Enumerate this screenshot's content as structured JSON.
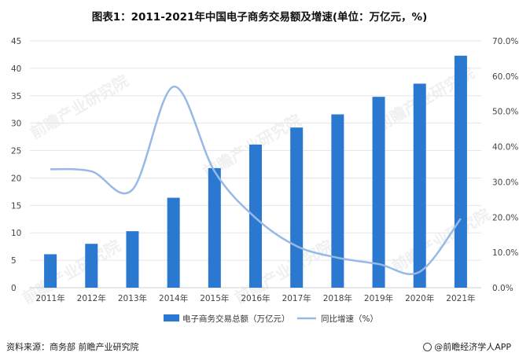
{
  "title": "图表1：2011-2021年中国电子商务交易额及增速(单位：万亿元，%)",
  "source": "资料来源：商务部 前瞻产业研究院",
  "brand": "@前瞻经济学人APP",
  "watermark": "前瞻产业研究院",
  "colors": {
    "bar": "#2b78d0",
    "line": "#97b9e6",
    "grid": "#e6e6e6",
    "axis": "#d0d0d0",
    "text": "#444444"
  },
  "chart_data": {
    "type": "bar",
    "categories": [
      "2011年",
      "2012年",
      "2013年",
      "2014年",
      "2015年",
      "2016年",
      "2017年",
      "2018年",
      "2019年",
      "2020年",
      "2021年"
    ],
    "series": [
      {
        "name": "电子商务交易总额（万亿元）",
        "type": "bar",
        "axis": "left",
        "values": [
          6.1,
          8.0,
          10.3,
          16.4,
          21.8,
          26.1,
          29.2,
          31.6,
          34.8,
          37.2,
          42.3
        ]
      },
      {
        "name": "同比增速（%）",
        "type": "line",
        "axis": "right",
        "values": [
          33.6,
          33.0,
          27.8,
          57.0,
          33.0,
          19.8,
          11.8,
          8.5,
          6.7,
          4.5,
          19.6
        ]
      }
    ],
    "left_axis": {
      "min": 0,
      "max": 45,
      "step": 5,
      "ticks": [
        "0",
        "5",
        "10",
        "15",
        "20",
        "25",
        "30",
        "35",
        "40",
        "45"
      ]
    },
    "right_axis": {
      "min": 0,
      "max": 70,
      "step": 10,
      "ticks": [
        "0.0%",
        "10.0%",
        "20.0%",
        "30.0%",
        "40.0%",
        "50.0%",
        "60.0%",
        "70.0%"
      ]
    },
    "legend_position": "bottom-center",
    "grid": true
  }
}
